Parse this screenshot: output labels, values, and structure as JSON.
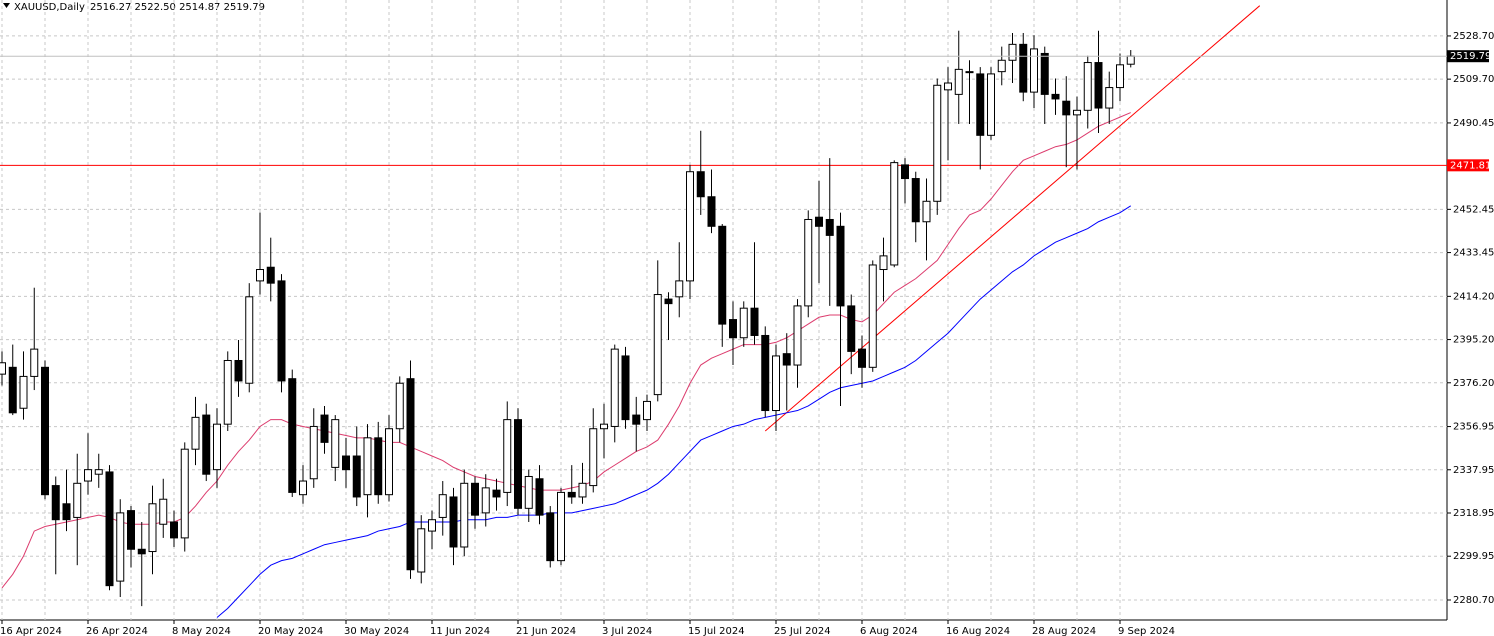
{
  "chart_data": {
    "type": "candlestick",
    "title": "XAUUSD,Daily",
    "header_ohlc": "2516.27 2522.50 2514.87 2519.79",
    "categories": [
      "16 Apr 2024",
      null,
      null,
      null,
      null,
      null,
      null,
      null,
      "26 Apr 2024",
      null,
      null,
      null,
      null,
      null,
      null,
      null,
      "8 May 2024",
      null,
      null,
      null,
      null,
      null,
      null,
      null,
      "20 May 2024",
      null,
      null,
      null,
      null,
      null,
      null,
      null,
      "30 May 2024",
      null,
      null,
      null,
      null,
      null,
      null,
      null,
      "11 Jun 2024",
      null,
      null,
      null,
      null,
      null,
      null,
      null,
      "21 Jun 2024",
      null,
      null,
      null,
      null,
      null,
      null,
      null,
      "3 Jul 2024",
      null,
      null,
      null,
      null,
      null,
      null,
      null,
      "15 Jul 2024",
      null,
      null,
      null,
      null,
      null,
      null,
      null,
      "25 Jul 2024",
      null,
      null,
      null,
      null,
      null,
      null,
      null,
      "6 Aug 2024",
      null,
      null,
      null,
      null,
      null,
      null,
      null,
      "16 Aug 2024",
      null,
      null,
      null,
      null,
      null,
      null,
      null,
      "28 Aug 2024",
      null,
      null,
      null,
      null,
      null,
      null,
      null,
      "9 Sep 2024",
      null
    ],
    "open": [
      2380,
      2383,
      2365,
      2379,
      2383,
      2331,
      2323,
      2317,
      2333,
      2336,
      2337,
      2289,
      2320,
      2303,
      2302,
      2314,
      2315,
      2308,
      2347,
      2362,
      2338,
      2358,
      2386,
      2376,
      2421,
      2427,
      2421,
      2378,
      2327,
      2334,
      2362,
      2339,
      2344,
      2344,
      2327,
      2352,
      2327,
      2356,
      2378,
      2293,
      2311,
      2317,
      2326,
      2304,
      2332,
      2319,
      2329,
      2328,
      2360,
      2321,
      2334,
      2319,
      2298,
      2328,
      2326,
      2331,
      2356,
      2357,
      2388,
      2362,
      2360,
      2371,
      2413,
      2414,
      2421,
      2469,
      2458,
      2445,
      2404,
      2396,
      2409,
      2397,
      2364,
      2389,
      2384,
      2410,
      2449,
      2448,
      2445,
      2410,
      2391,
      2383,
      2426,
      2428,
      2472,
      2466,
      2447,
      2456,
      2505,
      2503,
      2513,
      2512,
      2485,
      2513,
      2518,
      2525,
      2504,
      2521,
      2503,
      2500,
      2494,
      2496,
      2517,
      2497,
      2506,
      2516.27
    ],
    "high": [
      2390,
      2393,
      2390,
      2418,
      2386,
      2335,
      2338,
      2345,
      2354,
      2345,
      2340,
      2325,
      2322,
      2315,
      2331,
      2334,
      2320,
      2350,
      2370,
      2367,
      2365,
      2390,
      2395,
      2420,
      2451,
      2440,
      2424,
      2382,
      2340,
      2365,
      2366,
      2362,
      2352,
      2357,
      2358,
      2359,
      2362,
      2379,
      2386,
      2318,
      2320,
      2333,
      2330,
      2338,
      2335,
      2336,
      2334,
      2368,
      2365,
      2338,
      2340,
      2322,
      2330,
      2340,
      2341,
      2365,
      2367,
      2393,
      2392,
      2370,
      2371,
      2430,
      2416,
      2438,
      2472,
      2487,
      2470,
      2446,
      2412,
      2412,
      2438,
      2401,
      2393,
      2398,
      2413,
      2452,
      2465,
      2475,
      2451,
      2415,
      2397,
      2430,
      2440,
      2474,
      2475,
      2469,
      2466,
      2510,
      2515,
      2531,
      2518,
      2515,
      2515,
      2524,
      2530,
      2530,
      2529,
      2524,
      2510,
      2511,
      2502,
      2520,
      2531,
      2513,
      2521,
      2522.5
    ],
    "low": [
      2375,
      2362,
      2360,
      2373,
      2325,
      2292,
      2311,
      2296,
      2327,
      2330,
      2285,
      2282,
      2295,
      2278,
      2292,
      2308,
      2304,
      2302,
      2340,
      2333,
      2330,
      2355,
      2370,
      2372,
      2415,
      2412,
      2372,
      2326,
      2323,
      2330,
      2345,
      2333,
      2330,
      2322,
      2317,
      2323,
      2324,
      2350,
      2290,
      2288,
      2303,
      2309,
      2296,
      2300,
      2312,
      2313,
      2320,
      2322,
      2318,
      2315,
      2314,
      2295,
      2296,
      2323,
      2323,
      2328,
      2343,
      2350,
      2356,
      2346,
      2355,
      2368,
      2395,
      2405,
      2413,
      2450,
      2442,
      2392,
      2384,
      2392,
      2393,
      2361,
      2355,
      2364,
      2374,
      2405,
      2420,
      2410,
      2366,
      2380,
      2374,
      2381,
      2412,
      2427,
      2455,
      2438,
      2430,
      2450,
      2474,
      2490,
      2490,
      2470,
      2483,
      2507,
      2508,
      2500,
      2497,
      2490,
      2494,
      2471,
      2470,
      2488,
      2486,
      2490,
      2500,
      2514.87
    ],
    "close": [
      2385,
      2363,
      2379,
      2391,
      2327,
      2316,
      2316,
      2332,
      2338,
      2338,
      2287,
      2319,
      2303,
      2301,
      2323,
      2325,
      2308,
      2347,
      2361,
      2336,
      2358,
      2386,
      2377,
      2414,
      2426,
      2420,
      2377,
      2328,
      2333,
      2357,
      2350,
      2360,
      2338,
      2326,
      2352,
      2327,
      2356,
      2376,
      2294,
      2312,
      2316,
      2327,
      2304,
      2332,
      2318,
      2330,
      2326,
      2360,
      2321,
      2335,
      2318,
      2298,
      2328,
      2326,
      2332,
      2356,
      2358,
      2391,
      2360,
      2358,
      2368,
      2415,
      2411,
      2421,
      2469,
      2458,
      2445,
      2402,
      2396,
      2409,
      2397,
      2364,
      2388,
      2384,
      2410,
      2448,
      2445,
      2441,
      2410,
      2390,
      2383,
      2428,
      2432,
      2473,
      2466,
      2447,
      2456,
      2507,
      2508,
      2514,
      2513,
      2485,
      2512,
      2518,
      2525,
      2504,
      2523,
      2503,
      2501,
      2494,
      2496,
      2517,
      2497,
      2506,
      2516,
      2519.79
    ],
    "moving_averages": [
      {
        "color": "#dc3c6e",
        "values": [
          2286,
          2292,
          2300,
          2311,
          2313,
          2314,
          2315,
          2316,
          2317,
          2318,
          2317,
          2315,
          2314,
          2314,
          2314,
          2315,
          2315,
          2317,
          2322,
          2328,
          2333,
          2340,
          2346,
          2351,
          2357,
          2360,
          2360,
          2358,
          2357,
          2356,
          2355,
          2354,
          2353,
          2352,
          2352,
          2351,
          2350,
          2350,
          2348,
          2346,
          2344,
          2342,
          2339,
          2337,
          2335,
          2334,
          2333,
          2332,
          2331,
          2330,
          2329,
          2329,
          2329,
          2330,
          2331,
          2333,
          2337,
          2340,
          2343,
          2346,
          2348,
          2351,
          2358,
          2366,
          2376,
          2384,
          2387,
          2389,
          2391,
          2393,
          2393,
          2393,
          2394,
          2396,
          2399,
          2402,
          2405,
          2406,
          2406,
          2404,
          2403,
          2406,
          2411,
          2416,
          2419,
          2422,
          2426,
          2430,
          2437,
          2444,
          2450,
          2452,
          2457,
          2463,
          2469,
          2474,
          2476,
          2478,
          2480,
          2481,
          2483,
          2486,
          2489,
          2491,
          2493,
          2495
        ]
      },
      {
        "color": "#0000ff",
        "values": [
          null,
          null,
          null,
          null,
          null,
          null,
          null,
          null,
          null,
          null,
          null,
          null,
          null,
          null,
          null,
          null,
          null,
          null,
          null,
          null,
          2273,
          2277,
          2282,
          2287,
          2292,
          2296,
          2298,
          2299,
          2301,
          2303,
          2305,
          2306,
          2307,
          2308,
          2309,
          2311,
          2312,
          2313,
          2315,
          2315,
          2315,
          2315,
          2315,
          2316,
          2316,
          2316,
          2317,
          2317,
          2318,
          2318,
          2318,
          2319,
          2319,
          2319,
          2320,
          2321,
          2322,
          2323,
          2325,
          2327,
          2329,
          2332,
          2336,
          2341,
          2346,
          2351,
          2353,
          2355,
          2357,
          2358,
          2360,
          2361,
          2362,
          2363,
          2364,
          2366,
          2369,
          2372,
          2374,
          2375,
          2376,
          2377,
          2379,
          2381,
          2383,
          2386,
          2390,
          2394,
          2398,
          2403,
          2408,
          2413,
          2417,
          2421,
          2425,
          2428,
          2432,
          2435,
          2438,
          2440,
          2442,
          2444,
          2447,
          2449,
          2451,
          2454
        ]
      }
    ],
    "hline": {
      "value": 2471.81,
      "color": "#ff0000"
    },
    "trendline": {
      "color": "#ff0000",
      "x": [
        71,
        117
      ],
      "y": [
        2355,
        2542
      ]
    },
    "ylim": [
      2271.9,
      2544.5
    ],
    "yticks": [
      {
        "value": 2528.7,
        "label": "2528.70"
      },
      {
        "value": 2509.7,
        "label": "2509.70"
      },
      {
        "value": 2490.45,
        "label": "2490.45"
      },
      {
        "value": 2452.45,
        "label": "2452.45"
      },
      {
        "value": 2433.45,
        "label": "2433.45"
      },
      {
        "value": 2414.2,
        "label": "2414.20"
      },
      {
        "value": 2395.2,
        "label": "2395.20"
      },
      {
        "value": 2376.2,
        "label": "2376.20"
      },
      2356.95,
      2337.95,
      2318.95,
      2299.95,
      {
        "value": 2280.7,
        "label": "2280.70"
      }
    ],
    "grid": true
  }
}
